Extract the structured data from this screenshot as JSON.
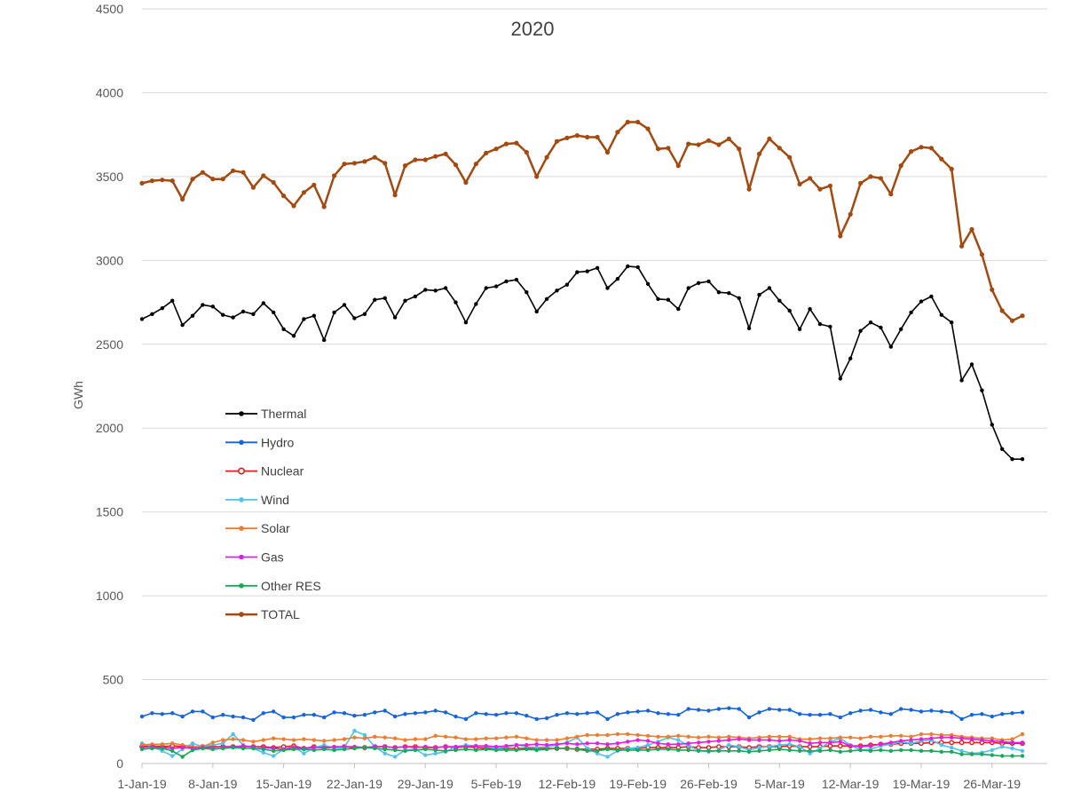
{
  "chart_data": {
    "type": "line",
    "title": "2020",
    "xlabel": "",
    "ylabel": "GWh",
    "ylim": [
      0,
      4500
    ],
    "yticks": [
      0,
      500,
      1000,
      1500,
      2000,
      2500,
      3000,
      3500,
      4000,
      4500
    ],
    "grid": "horizontal",
    "legend_position": "center-left",
    "xtick_labels": [
      "1-Jan-19",
      "8-Jan-19",
      "15-Jan-19",
      "22-Jan-19",
      "29-Jan-19",
      "5-Feb-19",
      "12-Feb-19",
      "19-Feb-19",
      "26-Feb-19",
      "5-Mar-19",
      "12-Mar-19",
      "19-Mar-19",
      "26-Mar-19"
    ],
    "x_start": "1-Jan-19",
    "x_step_days": 1,
    "series": [
      {
        "name": "Thermal",
        "color": "#000000",
        "values": [
          2650,
          2680,
          2715,
          2760,
          2615,
          2670,
          2735,
          2725,
          2675,
          2660,
          2695,
          2680,
          2745,
          2690,
          2590,
          2550,
          2650,
          2670,
          2525,
          2690,
          2735,
          2655,
          2680,
          2765,
          2775,
          2660,
          2760,
          2785,
          2825,
          2820,
          2835,
          2750,
          2630,
          2740,
          2835,
          2845,
          2875,
          2885,
          2810,
          2695,
          2770,
          2820,
          2855,
          2930,
          2935,
          2955,
          2835,
          2890,
          2965,
          2960,
          2860,
          2770,
          2765,
          2710,
          2835,
          2865,
          2875,
          2810,
          2805,
          2775,
          2595,
          2795,
          2835,
          2760,
          2700,
          2590,
          2710,
          2620,
          2605,
          2295,
          2415,
          2580,
          2630,
          2600,
          2485,
          2590,
          2690,
          2755,
          2785,
          2675,
          2630,
          2285,
          2380,
          2225,
          2020,
          1875,
          1815,
          1815
        ]
      },
      {
        "name": "Hydro",
        "color": "#1565d8",
        "values": [
          280,
          300,
          295,
          300,
          280,
          310,
          310,
          275,
          290,
          280,
          275,
          260,
          300,
          310,
          275,
          275,
          290,
          290,
          275,
          305,
          300,
          285,
          290,
          305,
          315,
          280,
          295,
          300,
          305,
          315,
          305,
          280,
          265,
          300,
          295,
          290,
          300,
          300,
          285,
          265,
          270,
          290,
          300,
          295,
          300,
          305,
          265,
          295,
          305,
          310,
          315,
          300,
          295,
          290,
          325,
          320,
          315,
          325,
          330,
          325,
          275,
          305,
          325,
          320,
          320,
          295,
          290,
          290,
          295,
          275,
          300,
          315,
          320,
          305,
          295,
          325,
          320,
          310,
          315,
          310,
          305,
          265,
          290,
          295,
          280,
          295,
          300,
          305
        ]
      },
      {
        "name": "Nuclear",
        "color": "#e0201a",
        "values": [
          100,
          105,
          100,
          105,
          100,
          95,
          100,
          100,
          100,
          100,
          100,
          100,
          100,
          95,
          100,
          105,
          90,
          100,
          95,
          95,
          100,
          95,
          95,
          100,
          100,
          95,
          100,
          100,
          95,
          95,
          100,
          95,
          100,
          95,
          90,
          90,
          90,
          90,
          90,
          90,
          90,
          90,
          90,
          85,
          85,
          85,
          90,
          90,
          90,
          90,
          95,
          95,
          95,
          95,
          100,
          95,
          95,
          100,
          100,
          100,
          95,
          100,
          100,
          100,
          105,
          100,
          100,
          100,
          105,
          105,
          105,
          105,
          110,
          115,
          115,
          120,
          120,
          120,
          125,
          125,
          125,
          125,
          125,
          125,
          125,
          120,
          120,
          120
        ]
      },
      {
        "name": "Wind",
        "color": "#4fc3e8",
        "values": [
          120,
          100,
          75,
          45,
          85,
          120,
          100,
          110,
          120,
          175,
          110,
          90,
          65,
          45,
          85,
          100,
          60,
          95,
          110,
          90,
          95,
          195,
          170,
          100,
          60,
          40,
          80,
          85,
          50,
          60,
          70,
          100,
          110,
          105,
          100,
          90,
          100,
          110,
          100,
          95,
          100,
          110,
          125,
          155,
          90,
          60,
          40,
          75,
          90,
          95,
          110,
          130,
          155,
          140,
          105,
          80,
          70,
          80,
          110,
          100,
          80,
          95,
          100,
          110,
          115,
          100,
          60,
          90,
          130,
          150,
          110,
          80,
          85,
          105,
          115,
          130,
          120,
          135,
          140,
          110,
          95,
          75,
          60,
          65,
          80,
          100,
          90,
          75
        ]
      },
      {
        "name": "Solar",
        "color": "#ed7d31",
        "values": [
          110,
          115,
          115,
          120,
          110,
          100,
          100,
          125,
          140,
          145,
          140,
          130,
          140,
          150,
          145,
          140,
          145,
          140,
          135,
          140,
          145,
          155,
          150,
          160,
          155,
          150,
          140,
          145,
          145,
          165,
          160,
          155,
          145,
          145,
          150,
          150,
          155,
          160,
          150,
          140,
          140,
          140,
          150,
          160,
          170,
          170,
          170,
          175,
          175,
          170,
          165,
          160,
          160,
          165,
          160,
          155,
          160,
          155,
          160,
          155,
          150,
          155,
          160,
          160,
          160,
          145,
          145,
          150,
          150,
          155,
          155,
          150,
          160,
          160,
          165,
          165,
          160,
          175,
          175,
          170,
          170,
          160,
          155,
          150,
          150,
          140,
          145,
          175
        ]
      },
      {
        "name": "Gas",
        "color": "#e020e0",
        "values": [
          95,
          100,
          95,
          90,
          95,
          90,
          95,
          95,
          100,
          100,
          105,
          100,
          95,
          90,
          85,
          95,
          90,
          95,
          95,
          100,
          100,
          100,
          95,
          100,
          100,
          95,
          100,
          95,
          100,
          95,
          100,
          100,
          100,
          105,
          105,
          100,
          105,
          110,
          110,
          115,
          110,
          115,
          120,
          115,
          120,
          120,
          115,
          120,
          130,
          140,
          135,
          120,
          115,
          115,
          120,
          125,
          130,
          135,
          140,
          145,
          140,
          140,
          140,
          135,
          140,
          135,
          120,
          125,
          125,
          130,
          105,
          100,
          105,
          115,
          125,
          135,
          140,
          145,
          150,
          155,
          155,
          150,
          145,
          140,
          135,
          130,
          125,
          125
        ]
      },
      {
        "name": "Other RES",
        "color": "#18a85a",
        "values": [
          85,
          90,
          90,
          75,
          40,
          80,
          90,
          85,
          90,
          95,
          90,
          90,
          85,
          75,
          80,
          85,
          85,
          80,
          85,
          80,
          85,
          90,
          95,
          90,
          85,
          80,
          75,
          80,
          85,
          80,
          75,
          80,
          85,
          80,
          85,
          80,
          80,
          80,
          85,
          80,
          85,
          90,
          90,
          85,
          75,
          75,
          85,
          80,
          80,
          80,
          80,
          85,
          85,
          80,
          80,
          75,
          75,
          75,
          75,
          75,
          70,
          75,
          80,
          85,
          80,
          75,
          75,
          75,
          80,
          70,
          75,
          80,
          75,
          80,
          75,
          80,
          80,
          75,
          75,
          70,
          70,
          55,
          55,
          55,
          50,
          45,
          45,
          45
        ]
      },
      {
        "name": "TOTAL",
        "color": "#a4490f",
        "values": [
          3460,
          3475,
          3480,
          3475,
          3365,
          3485,
          3525,
          3485,
          3485,
          3535,
          3525,
          3435,
          3505,
          3465,
          3385,
          3325,
          3405,
          3450,
          3320,
          3505,
          3575,
          3580,
          3590,
          3615,
          3580,
          3390,
          3565,
          3600,
          3600,
          3620,
          3635,
          3570,
          3465,
          3575,
          3640,
          3665,
          3695,
          3700,
          3645,
          3500,
          3615,
          3710,
          3730,
          3745,
          3735,
          3735,
          3645,
          3765,
          3825,
          3825,
          3785,
          3665,
          3670,
          3565,
          3695,
          3690,
          3715,
          3690,
          3725,
          3665,
          3425,
          3635,
          3725,
          3670,
          3615,
          3455,
          3490,
          3425,
          3445,
          3145,
          3275,
          3460,
          3500,
          3490,
          3395,
          3565,
          3650,
          3675,
          3670,
          3605,
          3545,
          3085,
          3185,
          3035,
          2825,
          2700,
          2640,
          2670
        ]
      }
    ]
  }
}
